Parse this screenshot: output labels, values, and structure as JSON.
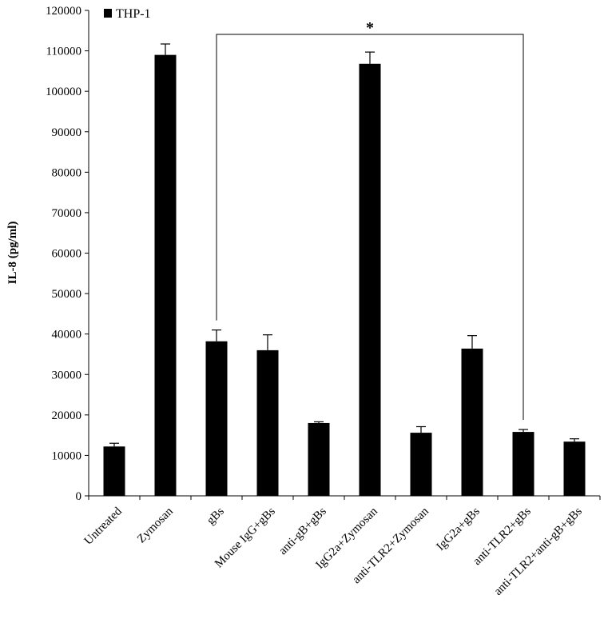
{
  "chart_data": {
    "type": "bar",
    "title": "",
    "xlabel": "",
    "ylabel": "IL-8 (pg/ml)",
    "ylim": [
      0,
      120000
    ],
    "yticks": [
      0,
      10000,
      20000,
      30000,
      40000,
      50000,
      60000,
      70000,
      80000,
      90000,
      100000,
      110000,
      120000
    ],
    "grid": false,
    "legend_position": "top-left",
    "categories": [
      "Untreated",
      "Zymosan",
      "gBs",
      "Mouse IgG+gBs",
      "anti-gB+gBs",
      "IgG2a+Zymosan",
      "anti-TLR2+Zymosan",
      "IgG2a+gBs",
      "anti-TLR2+gBs",
      "anti-TLR2+anti-gB+gBs"
    ],
    "series": [
      {
        "name": "THP-1",
        "color": "#000000",
        "values": [
          12200,
          109000,
          38200,
          36000,
          18000,
          106800,
          15600,
          36400,
          15800,
          13400
        ],
        "errors": [
          800,
          2700,
          2800,
          3800,
          300,
          2900,
          1500,
          3200,
          600,
          700
        ]
      }
    ],
    "annotations": [
      {
        "text": "*",
        "type": "significance-bracket",
        "from_category": "gBs",
        "to_category": "anti-TLR2+gBs"
      }
    ]
  }
}
